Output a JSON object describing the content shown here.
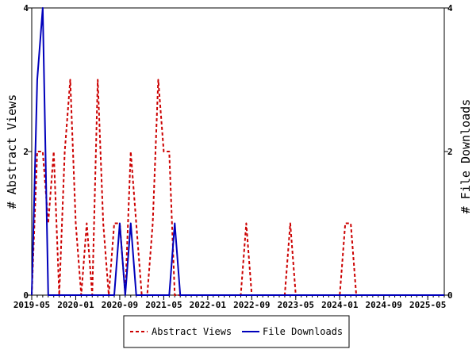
{
  "chart_data": {
    "type": "line",
    "ylabel_left": "# Abstract Views",
    "ylabel_right": "# File Downloads",
    "ylim": [
      0,
      4
    ],
    "y_ticks": [
      0,
      2,
      4
    ],
    "y_tick_labels": [
      "0",
      "2",
      "4"
    ],
    "x_range": [
      "2019-05",
      "2025-08"
    ],
    "x_ticks": [
      "2019-05",
      "2020-01",
      "2020-09",
      "2021-05",
      "2022-01",
      "2022-09",
      "2023-05",
      "2024-01",
      "2024-09",
      "2025-05"
    ],
    "grid": false,
    "legend_position": "bottom-center",
    "series": [
      {
        "name": "Abstract Views",
        "color": "#cc0000",
        "style": "dashed",
        "x": [
          "2019-05",
          "2019-06",
          "2019-07",
          "2019-08",
          "2019-09",
          "2019-10",
          "2019-11",
          "2019-12",
          "2020-01",
          "2020-02",
          "2020-03",
          "2020-04",
          "2020-05",
          "2020-06",
          "2020-07",
          "2020-08",
          "2020-09",
          "2020-10",
          "2020-11",
          "2020-12",
          "2021-01",
          "2021-02",
          "2021-03",
          "2021-04",
          "2021-05",
          "2021-06",
          "2021-07",
          "2021-08",
          "2021-09",
          "2021-10",
          "2022-07",
          "2022-08",
          "2022-09",
          "2023-03",
          "2023-04",
          "2023-05",
          "2024-01",
          "2024-02",
          "2024-03",
          "2024-04",
          "2025-08"
        ],
        "values": [
          0,
          2,
          2,
          1,
          2,
          0,
          2,
          3,
          1,
          0,
          1,
          0,
          3,
          1,
          0,
          1,
          1,
          0,
          2,
          1,
          0,
          0,
          1,
          3,
          2,
          2,
          0,
          0,
          0,
          0,
          0,
          1,
          0,
          0,
          1,
          0,
          0,
          1,
          1,
          0,
          0
        ]
      },
      {
        "name": "File Downloads",
        "color": "#0000bb",
        "style": "solid",
        "x": [
          "2019-05",
          "2019-06",
          "2019-07",
          "2019-08",
          "2020-08",
          "2020-09",
          "2020-10",
          "2020-11",
          "2020-12",
          "2021-01",
          "2021-06",
          "2021-07",
          "2021-08",
          "2025-08"
        ],
        "values": [
          0,
          3,
          4,
          0,
          0,
          1,
          0,
          1,
          0,
          0,
          0,
          1,
          0,
          0
        ]
      }
    ]
  }
}
